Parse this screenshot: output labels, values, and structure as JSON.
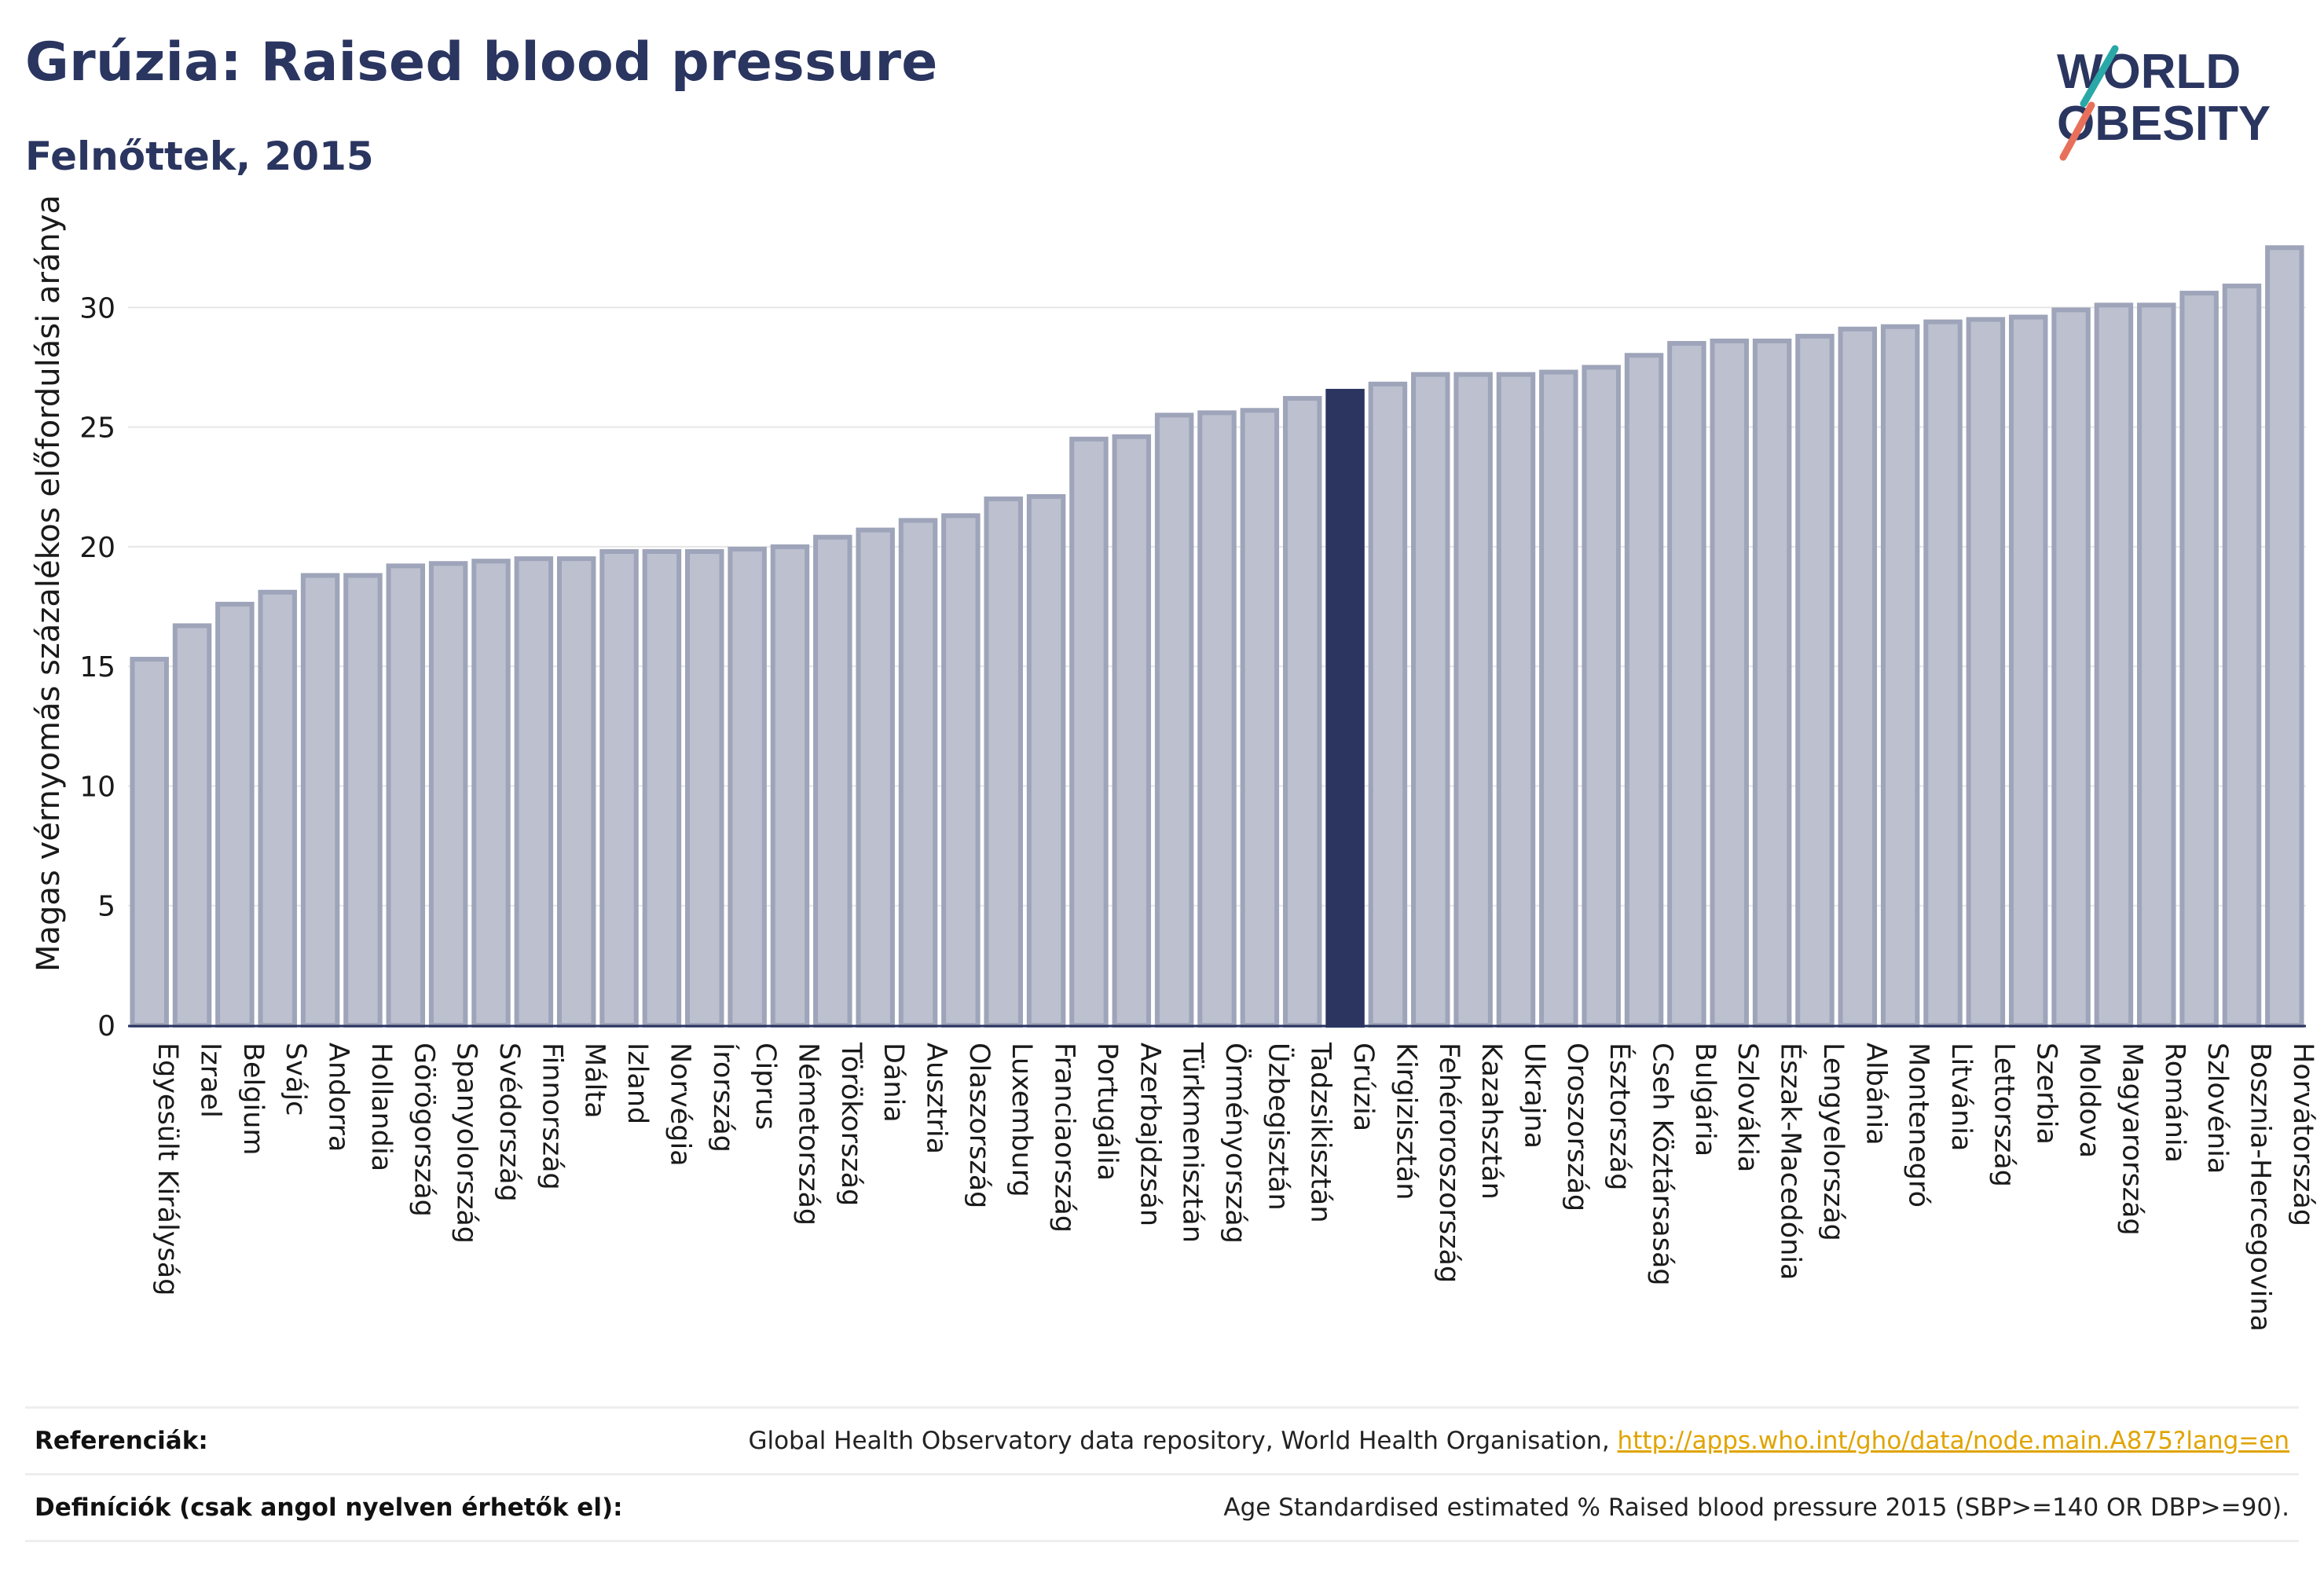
{
  "title": "Grúzia: Raised blood pressure",
  "subtitle": "Felnőttek, 2015",
  "logo": {
    "line1": "WORLD",
    "line2": "OBESITY"
  },
  "colors": {
    "highlight": "#2b3560",
    "bar": "#bcc0cf",
    "bar_stroke": "#9ea4b9",
    "title": "#2a3560"
  },
  "references": {
    "ref_label": "Referenciák:",
    "ref_text": "Global Health Observatory data repository, World Health Organisation, ",
    "ref_link": "http://apps.who.int/gho/data/node.main.A875?lang=en",
    "def_label": "Definíciók (csak angol nyelven érhetők el):",
    "def_text": "Age Standardised estimated % Raised blood pressure 2015 (SBP>=140 OR DBP>=90)."
  },
  "chart_data": {
    "type": "bar",
    "ylabel": "Magas vérnyomás százalékos előfordulási aránya",
    "ylim": [
      0,
      33
    ],
    "yticks": [
      0,
      5,
      10,
      15,
      20,
      25,
      30
    ],
    "grid": true,
    "highlight": "Grúzia",
    "categories": [
      "Egyesült Királyság",
      "Izrael",
      "Belgium",
      "Svájc",
      "Andorra",
      "Hollandia",
      "Görögország",
      "Spanyolország",
      "Svédország",
      "Finnország",
      "Málta",
      "Izland",
      "Norvégia",
      "Írország",
      "Ciprus",
      "Németország",
      "Törökország",
      "Dánia",
      "Ausztria",
      "Olaszország",
      "Luxemburg",
      "Franciaország",
      "Portugália",
      "Azerbajdzsán",
      "Türkmenisztán",
      "Örményország",
      "Üzbegisztán",
      "Tadzsikisztán",
      "Grúzia",
      "Kirgizisztán",
      "Fehéroroszország",
      "Kazahsztán",
      "Ukrajna",
      "Oroszország",
      "Észtország",
      "Cseh Köztársaság",
      "Bulgária",
      "Szlovákia",
      "Észak-Macedónia",
      "Lengyelország",
      "Albánia",
      "Montenegró",
      "Litvánia",
      "Lettország",
      "Szerbia",
      "Moldova",
      "Magyarország",
      "Románia",
      "Szlovénia",
      "Bosznia-Hercegovina",
      "Horvátország"
    ],
    "values": [
      15.3,
      16.7,
      17.6,
      18.1,
      18.8,
      18.8,
      19.2,
      19.3,
      19.4,
      19.5,
      19.5,
      19.8,
      19.8,
      19.8,
      19.9,
      20.0,
      20.4,
      20.7,
      21.1,
      21.3,
      22.0,
      22.1,
      24.5,
      24.6,
      25.5,
      25.6,
      25.7,
      26.2,
      26.5,
      26.8,
      27.2,
      27.2,
      27.2,
      27.3,
      27.5,
      28.0,
      28.5,
      28.6,
      28.6,
      28.8,
      29.1,
      29.2,
      29.4,
      29.5,
      29.6,
      29.9,
      30.1,
      30.1,
      30.6,
      30.9,
      32.5
    ]
  }
}
